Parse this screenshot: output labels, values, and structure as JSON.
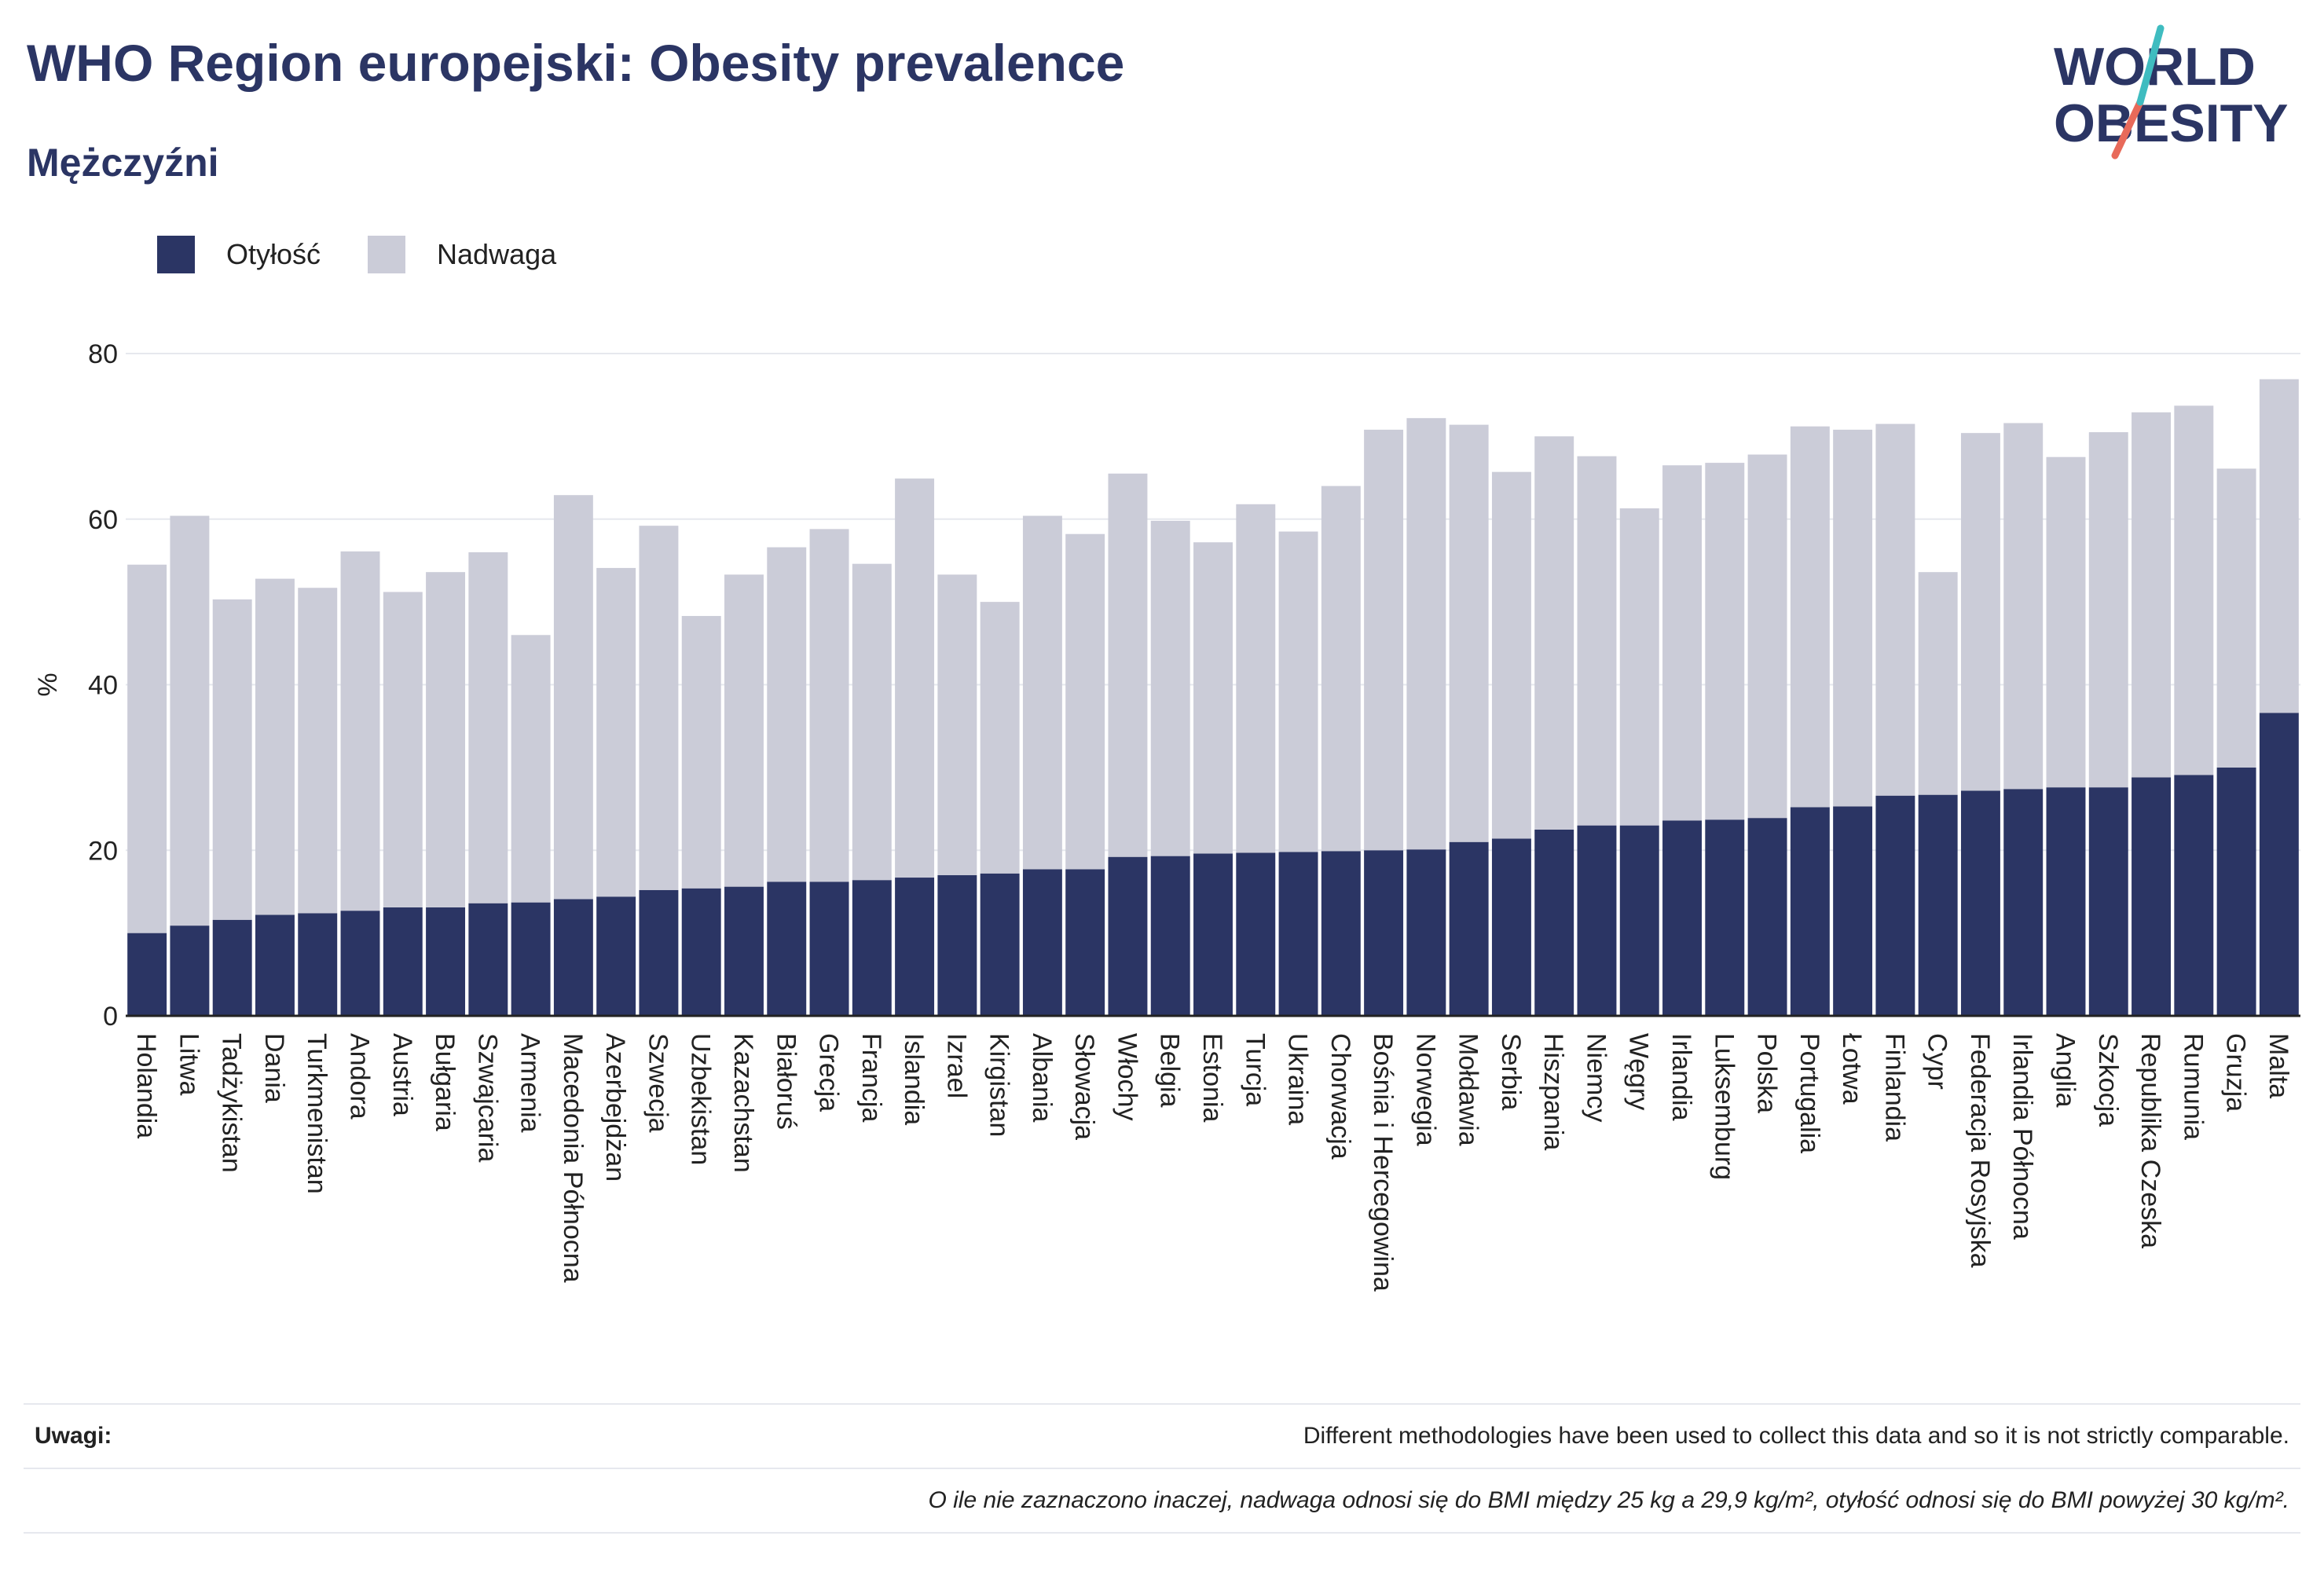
{
  "header": {
    "title": "WHO Region europejski: Obesity prevalence",
    "subtitle": "Mężczyźni"
  },
  "logo": {
    "line1": "WORLD",
    "line2": "OBESITY",
    "colors": {
      "text": "#2b3564",
      "slash_teal": "#3fbcc0",
      "slash_coral": "#e86a5a"
    }
  },
  "legend": {
    "items": [
      {
        "label": "Otyłość",
        "color": "#2b3564"
      },
      {
        "label": "Nadwaga",
        "color": "#cbccd8"
      }
    ]
  },
  "chart_data": {
    "type": "bar",
    "stacked": true,
    "ylabel": "%",
    "ylim": [
      0,
      80
    ],
    "yticks": [
      0,
      20,
      40,
      60,
      80
    ],
    "grid": true,
    "legend_position": "top-left",
    "categories": [
      "Holandia",
      "Litwa",
      "Tadżykistan",
      "Dania",
      "Turkmenistan",
      "Andora",
      "Austria",
      "Bułgaria",
      "Szwajcaria",
      "Armenia",
      "Macedonia Północna",
      "Azerbejdżan",
      "Szwecja",
      "Uzbekistan",
      "Kazachstan",
      "Białoruś",
      "Grecja",
      "Francja",
      "Islandia",
      "Izrael",
      "Kirgistan",
      "Albania",
      "Słowacja",
      "Włochy",
      "Belgia",
      "Estonia",
      "Turcja",
      "Ukraina",
      "Chorwacja",
      "Bośnia i Hercegowina",
      "Norwegia",
      "Mołdawia",
      "Serbia",
      "Hiszpania",
      "Niemcy",
      "Węgry",
      "Irlandia",
      "Luksemburg",
      "Polska",
      "Portugalia",
      "Łotwa",
      "Finlandia",
      "Cypr",
      "Federacja Rosyjska",
      "Irlandia Północna",
      "Anglia",
      "Szkocja",
      "Republika Czeska",
      "Rumunia",
      "Gruzja",
      "Malta"
    ],
    "series": [
      {
        "name": "Otyłość",
        "color": "#2b3564",
        "values": [
          10.0,
          10.9,
          11.6,
          12.2,
          12.4,
          12.7,
          13.1,
          13.1,
          13.6,
          13.7,
          14.1,
          14.4,
          15.2,
          15.4,
          15.6,
          16.2,
          16.2,
          16.4,
          16.7,
          17.0,
          17.2,
          17.7,
          17.7,
          19.2,
          19.3,
          19.6,
          19.7,
          19.8,
          19.9,
          20.0,
          20.1,
          21.0,
          21.4,
          22.5,
          23.0,
          23.0,
          23.6,
          23.7,
          23.9,
          25.2,
          25.3,
          26.6,
          26.7,
          27.2,
          27.4,
          27.6,
          27.6,
          28.8,
          29.1,
          30.0,
          36.6
        ]
      },
      {
        "name": "Nadwaga",
        "color": "#cbccd8",
        "values": [
          44.5,
          49.5,
          38.7,
          40.6,
          39.3,
          43.4,
          38.1,
          40.5,
          42.4,
          32.3,
          48.8,
          39.7,
          44.0,
          32.9,
          37.7,
          40.4,
          42.6,
          38.2,
          48.2,
          36.3,
          32.8,
          42.7,
          40.5,
          46.3,
          40.5,
          37.6,
          42.1,
          38.7,
          44.1,
          50.8,
          52.1,
          50.4,
          44.3,
          47.5,
          44.6,
          38.3,
          42.9,
          43.1,
          43.9,
          46.0,
          45.5,
          44.9,
          26.9,
          43.2,
          44.2,
          39.9,
          42.9,
          44.1,
          44.6,
          36.1,
          40.3
        ]
      }
    ]
  },
  "notes": {
    "label": "Uwagi:",
    "text": "Different methodologies have been used to collect this data and so it is not strictly comparable.",
    "footnote": "O ile nie zaznaczono inaczej, nadwaga odnosi się do BMI między 25 kg a 29,9 kg/m², otyłość odnosi się do BMI powyżej 30 kg/m²."
  }
}
